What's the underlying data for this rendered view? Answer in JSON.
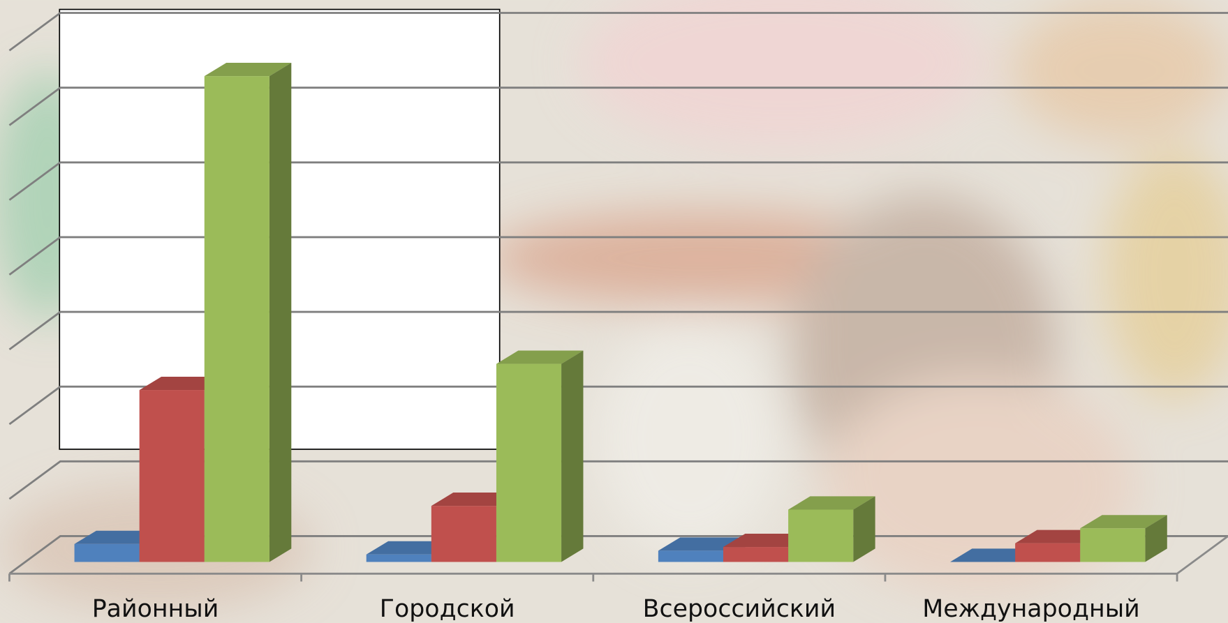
{
  "chart_data": {
    "type": "bar3d",
    "categories": [
      "Районный",
      "Городской",
      "Всероссийский",
      "Международный"
    ],
    "series": [
      {
        "color": "#4f81bd",
        "values": [
          0.24,
          0.1,
          0.15,
          0
        ]
      },
      {
        "color": "#c0504d",
        "values": [
          2.3,
          0.75,
          0.2,
          0.25
        ]
      },
      {
        "color": "#9bbb59",
        "values": [
          6.5,
          2.65,
          0.7,
          0.45
        ]
      }
    ],
    "ylim": [
      0,
      7
    ],
    "yticks": [
      0,
      1,
      2,
      3,
      4,
      5,
      6,
      7
    ],
    "grid": true
  }
}
